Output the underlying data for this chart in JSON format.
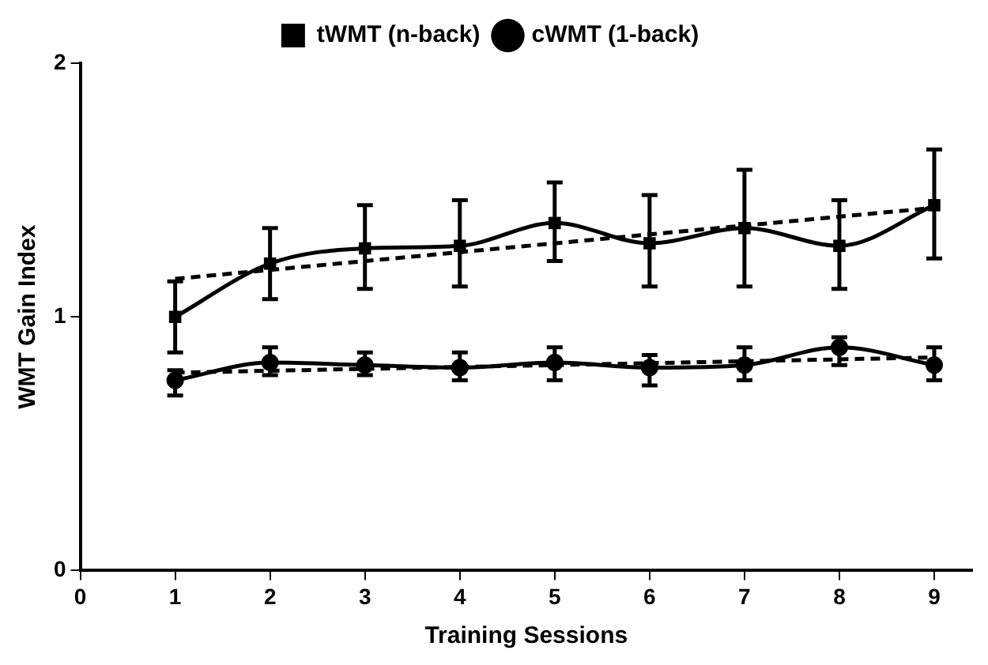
{
  "chart_data": {
    "type": "line",
    "xlabel": "Training Sessions",
    "ylabel": "WMT Gain Index",
    "xlim": [
      0,
      9.4
    ],
    "xticks": [
      0,
      1,
      2,
      3,
      4,
      5,
      6,
      7,
      8,
      9
    ],
    "ylim": [
      0,
      2
    ],
    "yticks": [
      0,
      1,
      2
    ],
    "grid": false,
    "legend": "top",
    "line_style": "solid",
    "series": [
      {
        "name": "tWMT (n-back)",
        "color": "#000000",
        "marker": "square",
        "x": [
          1,
          2,
          3,
          4,
          5,
          6,
          7,
          8,
          9
        ],
        "values": [
          1.0,
          1.21,
          1.27,
          1.28,
          1.37,
          1.29,
          1.35,
          1.28,
          1.44
        ],
        "errors": [
          [
            0.86,
            1.14
          ],
          [
            1.07,
            1.35
          ],
          [
            1.11,
            1.44
          ],
          [
            1.12,
            1.46
          ],
          [
            1.22,
            1.53
          ],
          [
            1.12,
            1.48
          ],
          [
            1.12,
            1.58
          ],
          [
            1.11,
            1.46
          ],
          [
            1.23,
            1.66
          ]
        ]
      },
      {
        "name": "cWMT (1-back)",
        "color": "#000000",
        "marker": "circle",
        "x": [
          1,
          2,
          3,
          4,
          5,
          6,
          7,
          8,
          9
        ],
        "values": [
          0.75,
          0.82,
          0.81,
          0.8,
          0.82,
          0.8,
          0.81,
          0.88,
          0.81
        ],
        "errors": [
          [
            0.69,
            0.79
          ],
          [
            0.77,
            0.88
          ],
          [
            0.77,
            0.86
          ],
          [
            0.75,
            0.86
          ],
          [
            0.75,
            0.88
          ],
          [
            0.73,
            0.85
          ],
          [
            0.75,
            0.88
          ],
          [
            0.81,
            0.92
          ],
          [
            0.75,
            0.88
          ]
        ]
      },
      {
        "type": "line",
        "color": "#000000",
        "marker": "none",
        "line_style": "dashed",
        "x": [
          1,
          9
        ],
        "values": [
          1.15,
          1.43
        ]
      },
      {
        "type": "line",
        "color": "#000000",
        "marker": "none",
        "line_style": "dashed",
        "x": [
          1,
          9
        ],
        "values": [
          0.78,
          0.84
        ]
      }
    ]
  }
}
